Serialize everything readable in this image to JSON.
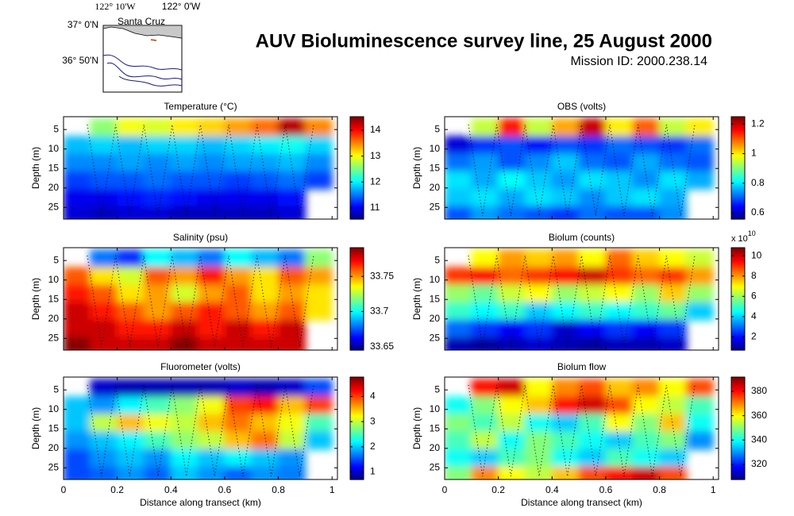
{
  "title": "AUV Bioluminescence survey line, 25 August 2000",
  "subtitle": "Mission ID: 2000.238.14",
  "map": {
    "lon_labels": [
      "122° 10'W",
      "122° 0'W"
    ],
    "lat_labels": [
      "37° 0'N",
      "36° 50'N"
    ],
    "place": "Santa Cruz"
  },
  "chart_data": [
    {
      "type": "heatmap",
      "title": "Temperature (°C)",
      "ylabel": "Depth (m)",
      "colormap": "jet",
      "xlim": [
        0,
        1.02
      ],
      "xticks": [
        0,
        0.2,
        0.4,
        0.6,
        0.8,
        1
      ],
      "ylim": [
        1.7,
        28
      ],
      "yticks": [
        5,
        10,
        15,
        20,
        25
      ],
      "y_reversed": true,
      "clim": [
        10.57,
        14.52
      ],
      "cticks": [
        11,
        12,
        13,
        14
      ],
      "x": [
        0.05,
        0.15,
        0.25,
        0.35,
        0.45,
        0.55,
        0.65,
        0.75,
        0.85,
        0.95
      ],
      "y": [
        4.5,
        9,
        13.5,
        18,
        22.5,
        27
      ],
      "z": [
        [
          null,
          12.6,
          13.0,
          12.9,
          13.1,
          13.2,
          13.4,
          13.6,
          14.3,
          13.5
        ],
        [
          11.8,
          11.9,
          11.8,
          11.9,
          11.9,
          11.8,
          11.9,
          12.0,
          12.1,
          11.9
        ],
        [
          11.6,
          11.6,
          11.7,
          11.6,
          11.7,
          11.6,
          11.7,
          11.7,
          11.8,
          11.6
        ],
        [
          11.3,
          11.4,
          11.4,
          11.5,
          11.4,
          11.4,
          11.3,
          11.4,
          11.5,
          11.3
        ],
        [
          11.0,
          11.0,
          11.1,
          11.2,
          11.1,
          11.0,
          11.0,
          11.0,
          11.1,
          null
        ],
        [
          10.9,
          10.8,
          10.9,
          10.9,
          10.8,
          10.8,
          10.8,
          10.8,
          10.9,
          null
        ]
      ]
    },
    {
      "type": "heatmap",
      "title": "OBS (volts)",
      "ylabel": "Depth (m)",
      "colormap": "jet",
      "xlim": [
        0,
        1.02
      ],
      "xticks": [
        0,
        0.2,
        0.4,
        0.6,
        0.8,
        1
      ],
      "ylim": [
        1.7,
        28
      ],
      "yticks": [
        5,
        10,
        15,
        20,
        25
      ],
      "y_reversed": true,
      "clim": [
        0.557,
        1.25
      ],
      "cticks": [
        0.6,
        0.8,
        1,
        1.2
      ],
      "x": [
        0.05,
        0.15,
        0.25,
        0.35,
        0.45,
        0.55,
        0.65,
        0.75,
        0.85,
        0.95
      ],
      "y": [
        4.5,
        9,
        13.5,
        18,
        22.5,
        27
      ],
      "z": [
        [
          null,
          0.95,
          1.15,
          0.95,
          1.05,
          1.2,
          1.0,
          1.1,
          0.95,
          1.0
        ],
        [
          0.62,
          0.68,
          0.7,
          0.65,
          0.7,
          0.68,
          0.72,
          0.7,
          0.68,
          0.72
        ],
        [
          0.72,
          0.75,
          0.7,
          0.74,
          0.78,
          0.72,
          0.7,
          0.76,
          0.72,
          0.7
        ],
        [
          0.8,
          0.76,
          0.82,
          0.78,
          0.75,
          0.8,
          0.78,
          0.74,
          0.8,
          0.76
        ],
        [
          0.78,
          0.8,
          0.76,
          0.8,
          0.78,
          0.74,
          0.78,
          0.8,
          0.76,
          null
        ],
        [
          0.7,
          0.75,
          0.72,
          0.7,
          0.68,
          0.72,
          0.7,
          0.7,
          0.74,
          null
        ]
      ]
    },
    {
      "type": "heatmap",
      "title": "Salinity (psu)",
      "ylabel": "Depth (m)",
      "colormap": "jet",
      "xlim": [
        0,
        1.02
      ],
      "xticks": [
        0,
        0.2,
        0.4,
        0.6,
        0.8,
        1
      ],
      "ylim": [
        1.7,
        28
      ],
      "yticks": [
        5,
        10,
        15,
        20,
        25
      ],
      "y_reversed": true,
      "clim": [
        33.645,
        33.791
      ],
      "cticks": [
        33.65,
        33.7,
        33.75
      ],
      "x": [
        0.05,
        0.15,
        0.25,
        0.35,
        0.45,
        0.55,
        0.65,
        0.75,
        0.85,
        0.95
      ],
      "y": [
        4.5,
        9,
        13.5,
        18,
        22.5,
        27
      ],
      "z": [
        [
          null,
          33.68,
          33.67,
          33.7,
          33.69,
          33.68,
          33.7,
          33.69,
          33.68,
          33.72
        ],
        [
          33.76,
          33.74,
          33.73,
          33.76,
          33.75,
          33.77,
          33.75,
          33.74,
          33.76,
          33.75
        ],
        [
          33.77,
          33.76,
          33.74,
          33.75,
          33.73,
          33.75,
          33.76,
          33.74,
          33.75,
          33.74
        ],
        [
          33.78,
          33.77,
          33.76,
          33.75,
          33.76,
          33.77,
          33.76,
          33.75,
          33.76,
          33.74
        ],
        [
          33.78,
          33.78,
          33.77,
          33.77,
          33.78,
          33.77,
          33.78,
          33.77,
          33.78,
          null
        ],
        [
          33.79,
          33.78,
          33.78,
          33.78,
          33.79,
          33.78,
          33.78,
          33.78,
          33.78,
          null
        ]
      ]
    },
    {
      "type": "heatmap",
      "title": "Biolum (counts)",
      "ylabel": "Depth (m)",
      "colormap": "jet",
      "xlim": [
        0,
        1.02
      ],
      "xticks": [
        0,
        0.2,
        0.4,
        0.6,
        0.8,
        1
      ],
      "ylim": [
        1.7,
        28
      ],
      "yticks": [
        5,
        10,
        15,
        20,
        25
      ],
      "y_reversed": true,
      "clim": [
        0.7,
        10.8
      ],
      "cticks": [
        2,
        4,
        6,
        8,
        10
      ],
      "colorbar_exponent": {
        "base": "x 10",
        "power": "10"
      },
      "x": [
        0.05,
        0.15,
        0.25,
        0.35,
        0.45,
        0.55,
        0.65,
        0.75,
        0.85,
        0.95
      ],
      "y": [
        4.5,
        9,
        13.5,
        18,
        22.5,
        27
      ],
      "z": [
        [
          null,
          7,
          8,
          7.5,
          8,
          7,
          8.5,
          7.5,
          7,
          6.5
        ],
        [
          9,
          9.5,
          8.5,
          9,
          9.5,
          10,
          9,
          8.5,
          9,
          8
        ],
        [
          6,
          5.5,
          6.5,
          7,
          6,
          6.5,
          7,
          6,
          7.5,
          6
        ],
        [
          5,
          4.5,
          5,
          4,
          4.5,
          5,
          4.5,
          5,
          5.5,
          4
        ],
        [
          3,
          2.5,
          2,
          2.5,
          1.5,
          2,
          2.5,
          2,
          2.5,
          null
        ],
        [
          1.2,
          1.0,
          1.2,
          1.5,
          1.2,
          1.0,
          1.3,
          1.2,
          1.4,
          null
        ]
      ]
    },
    {
      "type": "heatmap",
      "title": "Fluorometer (volts)",
      "ylabel": "Depth (m)",
      "xlabel": "Distance along transect (km)",
      "colormap": "jet",
      "xlim": [
        0,
        1.02
      ],
      "xticks": [
        0,
        0.2,
        0.4,
        0.6,
        0.8,
        1
      ],
      "ylim": [
        1.7,
        28
      ],
      "yticks": [
        5,
        10,
        15,
        20,
        25
      ],
      "y_reversed": true,
      "clim": [
        0.7,
        4.77
      ],
      "cticks": [
        1,
        2,
        3,
        4
      ],
      "x": [
        0.05,
        0.15,
        0.25,
        0.35,
        0.45,
        0.55,
        0.65,
        0.75,
        0.85,
        0.95
      ],
      "y": [
        4.5,
        9,
        13.5,
        18,
        22.5,
        27
      ],
      "z": [
        [
          null,
          1.0,
          0.9,
          0.9,
          0.9,
          0.9,
          1.0,
          0.9,
          1.0,
          1.5
        ],
        [
          2.0,
          1.8,
          2.2,
          2.5,
          2.8,
          3.2,
          4.0,
          4.2,
          3.5,
          4.0
        ],
        [
          2.0,
          3.0,
          3.5,
          3.2,
          3.0,
          3.5,
          3.8,
          3.5,
          3.2,
          2.5
        ],
        [
          1.8,
          2.0,
          2.2,
          2.5,
          2.8,
          3.0,
          3.5,
          3.8,
          3.0,
          2.0
        ],
        [
          1.5,
          1.8,
          2.0,
          1.8,
          2.2,
          2.0,
          2.2,
          2.0,
          1.8,
          null
        ],
        [
          1.5,
          1.6,
          1.8,
          1.6,
          2.0,
          1.8,
          1.6,
          1.8,
          1.7,
          null
        ]
      ]
    },
    {
      "type": "heatmap",
      "title": "Biolum flow",
      "ylabel": "Depth (m)",
      "xlabel": "Distance along transect (km)",
      "colormap": "jet",
      "xlim": [
        0,
        1.02
      ],
      "xticks": [
        0,
        0.2,
        0.4,
        0.6,
        0.8,
        1
      ],
      "ylim": [
        1.7,
        28
      ],
      "yticks": [
        5,
        10,
        15,
        20,
        25
      ],
      "y_reversed": true,
      "clim": [
        307.6,
        391.7
      ],
      "cticks": [
        320,
        340,
        360,
        380
      ],
      "x": [
        0.05,
        0.15,
        0.25,
        0.35,
        0.45,
        0.55,
        0.65,
        0.75,
        0.85,
        0.95
      ],
      "y": [
        4.5,
        9,
        13.5,
        18,
        22.5,
        27
      ],
      "z": [
        [
          null,
          380,
          385,
          360,
          370,
          375,
          365,
          370,
          360,
          375
        ],
        [
          340,
          350,
          360,
          365,
          380,
          385,
          375,
          360,
          355,
          345
        ],
        [
          350,
          345,
          355,
          340,
          335,
          345,
          360,
          350,
          365,
          340
        ],
        [
          345,
          355,
          340,
          350,
          345,
          340,
          335,
          345,
          350,
          330
        ],
        [
          340,
          335,
          345,
          350,
          340,
          335,
          345,
          340,
          335,
          null
        ],
        [
          350,
          370,
          360,
          355,
          365,
          375,
          380,
          385,
          375,
          null
        ]
      ]
    }
  ]
}
